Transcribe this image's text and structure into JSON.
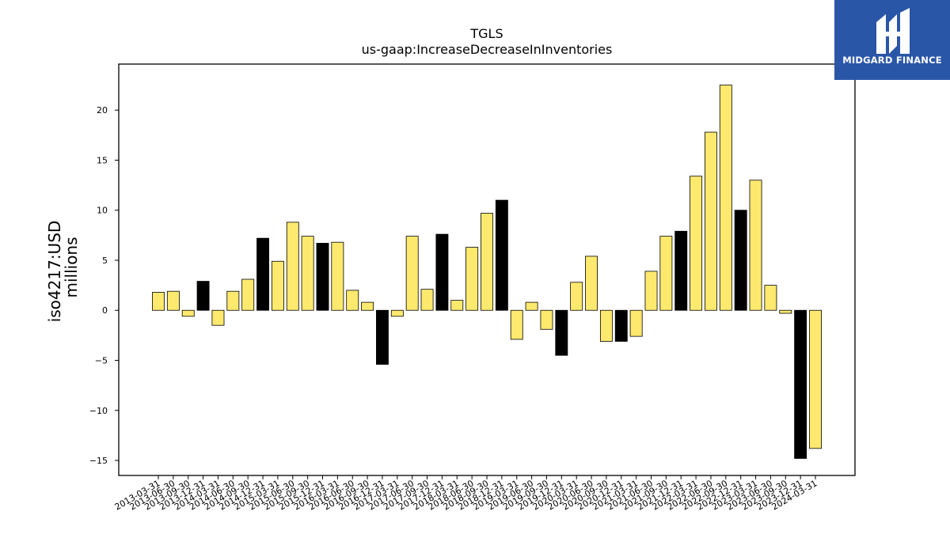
{
  "chart_data": {
    "type": "bar",
    "title": "TGLS",
    "subtitle": "us-gaap:IncreaseDecreaseInInventories",
    "ylabel": "iso4217:USD",
    "ylabel2": "millions",
    "ylim": [
      -16.5,
      24.6
    ],
    "yticks": [
      -15,
      -10,
      -5,
      0,
      5,
      10,
      15,
      20
    ],
    "ytick_labels": [
      "−15",
      "−10",
      "−5",
      "0",
      "5",
      "10",
      "15",
      "20"
    ],
    "grid": false,
    "colors": {
      "normal": "#fde96e",
      "highlight": "#000000",
      "edge": "#000000"
    },
    "categories": [
      "2013-03-31",
      "2013-06-30",
      "2013-09-30",
      "2013-12-31",
      "2014-03-31",
      "2014-06-30",
      "2014-09-30",
      "2014-12-31",
      "2015-03-31",
      "2015-06-30",
      "2015-09-30",
      "2015-12-31",
      "2016-03-31",
      "2016-06-30",
      "2016-09-30",
      "2016-12-31",
      "2017-03-31",
      "2017-06-30",
      "2017-09-30",
      "2017-12-31",
      "2018-03-31",
      "2018-06-30",
      "2018-09-30",
      "2018-12-31",
      "2019-03-31",
      "2019-06-30",
      "2019-09-30",
      "2019-12-31",
      "2020-03-31",
      "2020-06-30",
      "2020-09-30",
      "2020-12-31",
      "2021-03-31",
      "2021-06-30",
      "2021-09-30",
      "2021-12-31",
      "2022-03-31",
      "2022-06-30",
      "2022-09-30",
      "2022-12-31",
      "2023-03-31",
      "2023-06-30",
      "2023-09-30",
      "2023-12-31",
      "2024-03-31"
    ],
    "values": [
      1.8,
      1.9,
      -0.6,
      2.9,
      -1.5,
      1.9,
      3.1,
      7.2,
      4.9,
      8.8,
      7.4,
      6.7,
      6.8,
      2.0,
      0.8,
      -5.4,
      -0.6,
      7.4,
      2.1,
      7.6,
      1.0,
      6.3,
      9.7,
      11.0,
      -2.9,
      0.8,
      -1.9,
      -4.5,
      2.8,
      5.4,
      -3.1,
      -3.1,
      -2.6,
      3.9,
      7.4,
      7.9,
      13.4,
      17.8,
      22.5,
      10.0,
      13.0,
      2.5,
      -0.3,
      -14.8,
      -13.8
    ],
    "highlight": [
      false,
      false,
      false,
      true,
      false,
      false,
      false,
      true,
      false,
      false,
      false,
      true,
      false,
      false,
      false,
      true,
      false,
      false,
      false,
      true,
      false,
      false,
      false,
      true,
      false,
      false,
      false,
      true,
      false,
      false,
      false,
      true,
      false,
      false,
      false,
      true,
      false,
      false,
      false,
      true,
      false,
      false,
      false,
      true,
      false
    ]
  },
  "branding": {
    "logo_text": "MIDGARD FINANCE"
  }
}
